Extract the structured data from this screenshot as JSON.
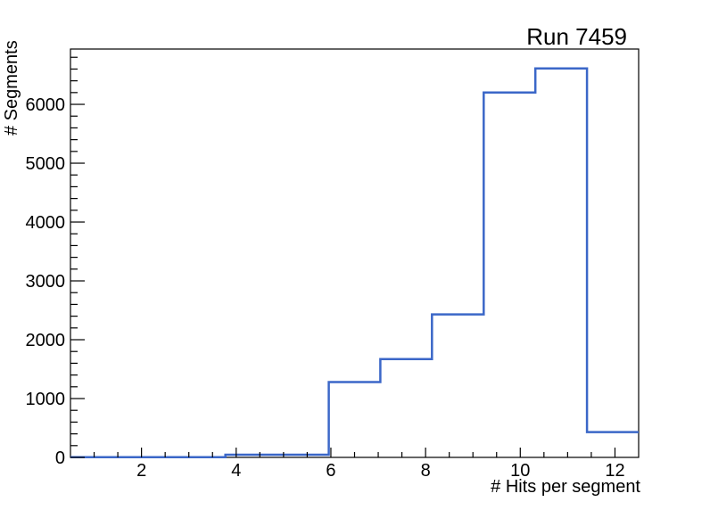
{
  "window": {
    "background": "#ffffff"
  },
  "chart_data": {
    "type": "bar",
    "subtype": "step-histogram",
    "title": "Run 7459",
    "xlabel": "# Hits per segment",
    "ylabel": "# Segments",
    "bin_edges": [
      0.5,
      1.591,
      2.682,
      3.773,
      4.864,
      5.955,
      7.045,
      8.136,
      9.227,
      10.318,
      11.409,
      12.5
    ],
    "values": [
      5,
      5,
      5,
      45,
      45,
      1280,
      1670,
      2430,
      6200,
      6610,
      430
    ],
    "xlim": [
      0.5,
      12.5
    ],
    "ylim": [
      0,
      6940
    ],
    "x_major_ticks": [
      2,
      4,
      6,
      8,
      10,
      12
    ],
    "x_minor_step": 0.5,
    "y_major_step": 1000,
    "y_minor_step": 200,
    "y_label_max": 6000,
    "grid": false,
    "legend": null,
    "line_color": "#3b67c8",
    "axis_color": "#000000",
    "background_color": "#ffffff"
  }
}
